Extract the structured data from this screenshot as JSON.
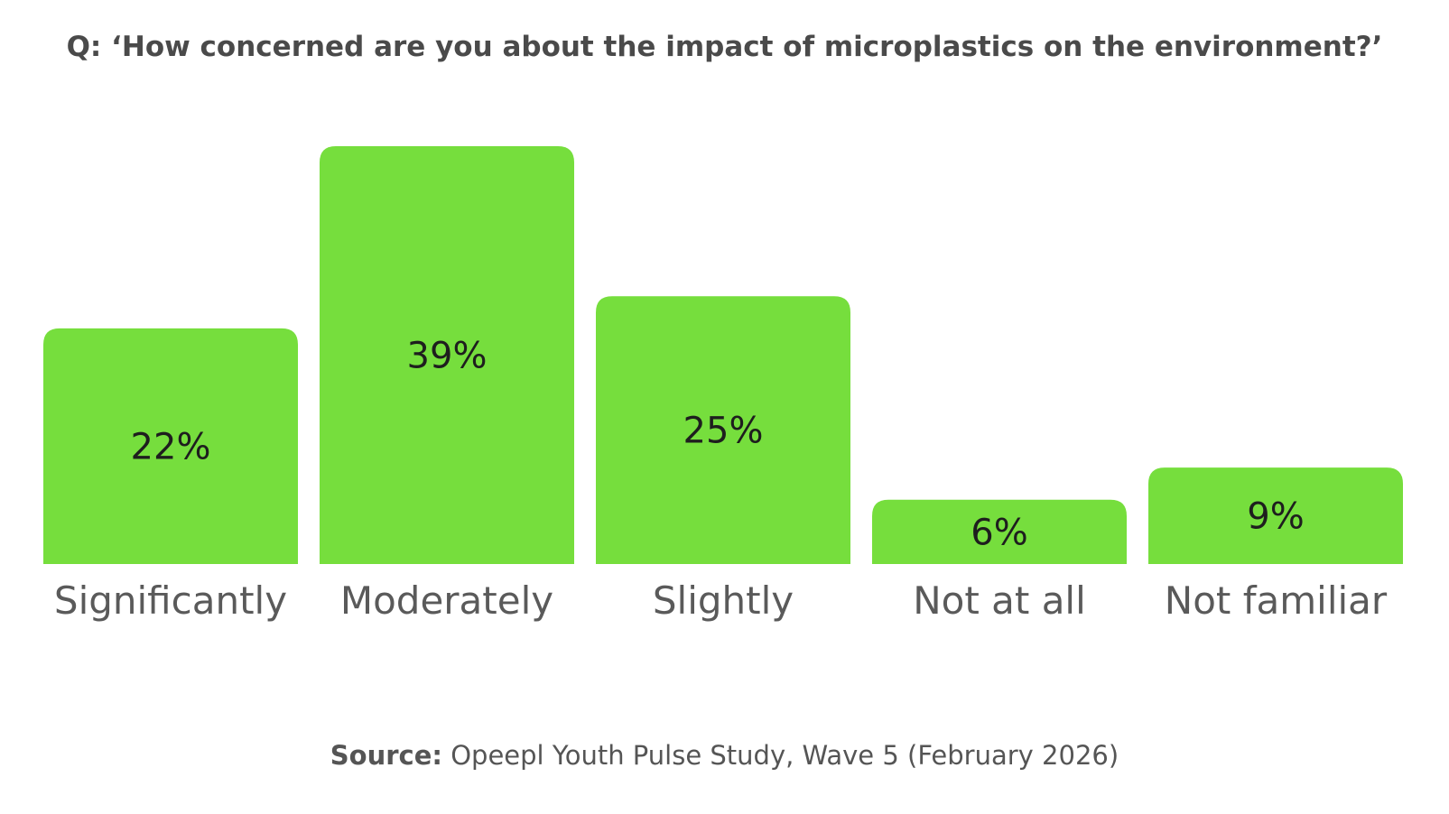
{
  "chart_data": {
    "type": "bar",
    "title": "Q: ‘How concerned are you about the impact of microplastics on the environment?’",
    "categories": [
      "Significantly",
      "Moderately",
      "Slightly",
      "Not at all",
      "Not familiar"
    ],
    "values": [
      22,
      39,
      25,
      6,
      9
    ],
    "value_labels": [
      "22%",
      "39%",
      "25%",
      "6%",
      "9%"
    ],
    "unit": "%",
    "ylim": [
      0,
      39
    ],
    "grid": false,
    "legend": "none",
    "bar_color": "#76de3d"
  },
  "source": {
    "label": "Source:",
    "text": "Opeepl Youth Pulse Study, Wave 5 (February 2026)"
  }
}
